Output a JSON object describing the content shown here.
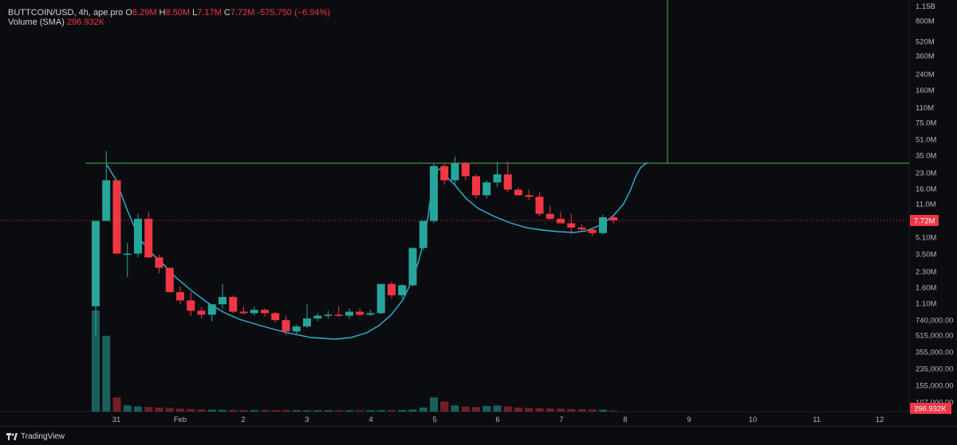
{
  "legend": {
    "symbol": "BUTTCOIN/USD, 4h, ape.pro",
    "open_label": "O",
    "open": "8.29M",
    "high_label": "H",
    "high": "8.50M",
    "low_label": "L",
    "low": "7.17M",
    "close_label": "C",
    "close": "7.72M",
    "change": "-575,750 (−6.94%)",
    "volume_label": "Volume (SMA)",
    "volume_value": "296.932K"
  },
  "price_axis": {
    "top_label": "1.15B",
    "labels": [
      "800M",
      "520M",
      "360M",
      "240M",
      "160M",
      "110M",
      "75.0M",
      "51.0M",
      "35.0M",
      "23.0M",
      "16.0M",
      "11.0M",
      "7.72M",
      "5.10M",
      "3.50M",
      "2.30M",
      "1.60M",
      "1.10M",
      "740,000.00",
      "515,000.00",
      "355,000.00",
      "235,000.00",
      "155,000.00",
      "107,000.00"
    ],
    "current_price_label": "7.72M",
    "current_volume_label": "296.932K"
  },
  "time_axis": {
    "labels": [
      "31",
      "Feb",
      "2",
      "3",
      "4",
      "5",
      "6",
      "7",
      "8",
      "9",
      "10",
      "11",
      "12"
    ]
  },
  "colors": {
    "up": "#26a69a",
    "down": "#f23645",
    "ma": "#2fb5d9",
    "hline": "#4caf50",
    "background": "#0b0c10"
  },
  "footer": {
    "brand": "TradingView"
  },
  "chart_data": {
    "type": "candlestick",
    "scale": "log",
    "candles": [
      {
        "o": 1.0,
        "h": 7.6,
        "l": 0.5,
        "c": 7.6
      },
      {
        "o": 7.6,
        "h": 40,
        "l": 7.6,
        "c": 20
      },
      {
        "o": 20,
        "h": 20,
        "l": 3.5,
        "c": 3.5
      },
      {
        "o": 3.5,
        "h": 4.5,
        "l": 2.0,
        "c": 3.5
      },
      {
        "o": 3.5,
        "h": 9.0,
        "l": 3.2,
        "c": 8.0
      },
      {
        "o": 8.0,
        "h": 9.5,
        "l": 3.2,
        "c": 3.2
      },
      {
        "o": 3.2,
        "h": 3.4,
        "l": 2.2,
        "c": 2.5
      },
      {
        "o": 2.5,
        "h": 2.5,
        "l": 1.4,
        "c": 1.4
      },
      {
        "o": 1.4,
        "h": 1.6,
        "l": 1.05,
        "c": 1.15
      },
      {
        "o": 1.15,
        "h": 1.4,
        "l": 0.8,
        "c": 0.9
      },
      {
        "o": 0.9,
        "h": 0.98,
        "l": 0.75,
        "c": 0.82
      },
      {
        "o": 0.82,
        "h": 1.05,
        "l": 0.7,
        "c": 1.05
      },
      {
        "o": 1.05,
        "h": 1.7,
        "l": 0.95,
        "c": 1.25
      },
      {
        "o": 1.25,
        "h": 1.3,
        "l": 0.85,
        "c": 0.88
      },
      {
        "o": 0.88,
        "h": 1.0,
        "l": 0.82,
        "c": 0.85
      },
      {
        "o": 0.85,
        "h": 1.0,
        "l": 0.8,
        "c": 0.92
      },
      {
        "o": 0.92,
        "h": 0.95,
        "l": 0.78,
        "c": 0.85
      },
      {
        "o": 0.85,
        "h": 0.88,
        "l": 0.68,
        "c": 0.72
      },
      {
        "o": 0.72,
        "h": 0.8,
        "l": 0.5,
        "c": 0.55
      },
      {
        "o": 0.55,
        "h": 0.65,
        "l": 0.52,
        "c": 0.62
      },
      {
        "o": 0.62,
        "h": 1.05,
        "l": 0.6,
        "c": 0.75
      },
      {
        "o": 0.75,
        "h": 0.85,
        "l": 0.7,
        "c": 0.8
      },
      {
        "o": 0.8,
        "h": 0.9,
        "l": 0.75,
        "c": 0.82
      },
      {
        "o": 0.82,
        "h": 1.0,
        "l": 0.78,
        "c": 0.8
      },
      {
        "o": 0.8,
        "h": 0.95,
        "l": 0.75,
        "c": 0.88
      },
      {
        "o": 0.88,
        "h": 0.95,
        "l": 0.8,
        "c": 0.82
      },
      {
        "o": 0.82,
        "h": 0.92,
        "l": 0.8,
        "c": 0.85
      },
      {
        "o": 0.85,
        "h": 1.7,
        "l": 0.83,
        "c": 1.7
      },
      {
        "o": 1.7,
        "h": 1.8,
        "l": 1.2,
        "c": 1.3
      },
      {
        "o": 1.3,
        "h": 1.7,
        "l": 1.2,
        "c": 1.65
      },
      {
        "o": 1.65,
        "h": 4.0,
        "l": 1.6,
        "c": 4.0
      },
      {
        "o": 4.0,
        "h": 7.6,
        "l": 3.8,
        "c": 7.6
      },
      {
        "o": 7.6,
        "h": 30,
        "l": 7.3,
        "c": 28
      },
      {
        "o": 28,
        "h": 30,
        "l": 18,
        "c": 20
      },
      {
        "o": 20,
        "h": 35,
        "l": 18,
        "c": 30
      },
      {
        "o": 30,
        "h": 31,
        "l": 20,
        "c": 22
      },
      {
        "o": 22,
        "h": 23,
        "l": 13,
        "c": 14
      },
      {
        "o": 14,
        "h": 20,
        "l": 13,
        "c": 19
      },
      {
        "o": 19,
        "h": 31,
        "l": 17,
        "c": 23
      },
      {
        "o": 23,
        "h": 31,
        "l": 15,
        "c": 16
      },
      {
        "o": 16,
        "h": 17,
        "l": 14,
        "c": 14
      },
      {
        "o": 14,
        "h": 16,
        "l": 12.5,
        "c": 13.5
      },
      {
        "o": 13.5,
        "h": 15,
        "l": 8.5,
        "c": 9.0
      },
      {
        "o": 9.0,
        "h": 11,
        "l": 7.8,
        "c": 8.0
      },
      {
        "o": 8.0,
        "h": 9.5,
        "l": 7.2,
        "c": 7.2
      },
      {
        "o": 7.2,
        "h": 9.0,
        "l": 5.5,
        "c": 6.5
      },
      {
        "o": 6.5,
        "h": 7.0,
        "l": 6.0,
        "c": 6.2
      },
      {
        "o": 6.2,
        "h": 6.5,
        "l": 5.3,
        "c": 5.7
      },
      {
        "o": 5.7,
        "h": 8.8,
        "l": 5.5,
        "c": 8.3
      },
      {
        "o": 8.29,
        "h": 8.5,
        "l": 7.17,
        "c": 7.72
      }
    ],
    "volumes": [
      1.0,
      0.75,
      0.14,
      0.06,
      0.05,
      0.045,
      0.04,
      0.035,
      0.03,
      0.025,
      0.02,
      0.018,
      0.017,
      0.016,
      0.015,
      0.014,
      0.014,
      0.013,
      0.013,
      0.013,
      0.012,
      0.013,
      0.013,
      0.012,
      0.012,
      0.012,
      0.012,
      0.014,
      0.014,
      0.015,
      0.02,
      0.04,
      0.14,
      0.1,
      0.06,
      0.05,
      0.045,
      0.055,
      0.06,
      0.05,
      0.04,
      0.035,
      0.032,
      0.03,
      0.028,
      0.025,
      0.022,
      0.02,
      0.018,
      0.01
    ],
    "ma_points": [
      [
        134,
        207
      ],
      [
        145,
        225
      ],
      [
        160,
        265
      ],
      [
        175,
        300
      ],
      [
        190,
        318
      ],
      [
        205,
        332
      ],
      [
        220,
        348
      ],
      [
        240,
        365
      ],
      [
        260,
        380
      ],
      [
        280,
        392
      ],
      [
        300,
        401
      ],
      [
        330,
        410
      ],
      [
        360,
        418
      ],
      [
        390,
        424
      ],
      [
        420,
        426
      ],
      [
        440,
        424
      ],
      [
        460,
        418
      ],
      [
        475,
        409
      ],
      [
        490,
        396
      ],
      [
        505,
        377
      ],
      [
        515,
        356
      ],
      [
        525,
        328
      ],
      [
        532,
        300
      ],
      [
        537,
        270
      ],
      [
        541,
        240
      ],
      [
        546,
        215
      ],
      [
        552,
        212
      ],
      [
        560,
        222
      ],
      [
        570,
        232
      ],
      [
        585,
        250
      ],
      [
        600,
        262
      ],
      [
        620,
        272
      ],
      [
        640,
        280
      ],
      [
        660,
        286
      ],
      [
        680,
        289
      ],
      [
        700,
        291
      ],
      [
        720,
        292
      ],
      [
        735,
        290
      ],
      [
        755,
        282
      ],
      [
        770,
        270
      ],
      [
        782,
        256
      ],
      [
        790,
        240
      ],
      [
        797,
        222
      ],
      [
        803,
        211
      ],
      [
        810,
        205
      ],
      [
        812,
        205
      ]
    ],
    "price_range": [
      0.1,
      1150
    ],
    "horizontal_line_price": 30
  }
}
